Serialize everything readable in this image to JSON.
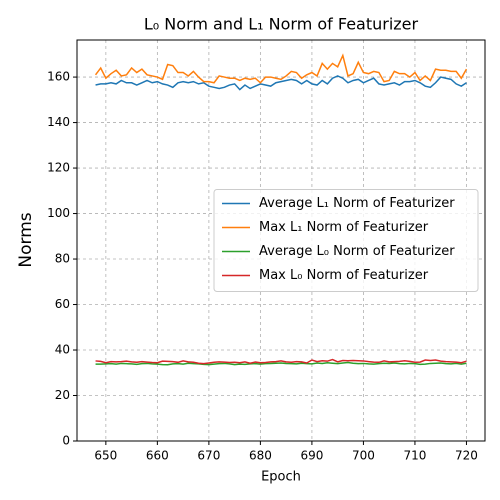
{
  "chart_data": {
    "type": "line",
    "title": "L₀ Norm and L₁ Norm of Featurizer",
    "xlabel": "Epoch",
    "ylabel": "Norms",
    "x": [
      648,
      649,
      650,
      651,
      652,
      653,
      654,
      655,
      656,
      657,
      658,
      659,
      660,
      661,
      662,
      663,
      664,
      665,
      666,
      667,
      668,
      669,
      670,
      671,
      672,
      673,
      674,
      675,
      676,
      677,
      678,
      679,
      680,
      681,
      682,
      683,
      684,
      685,
      686,
      687,
      688,
      689,
      690,
      691,
      692,
      693,
      694,
      695,
      696,
      697,
      698,
      699,
      700,
      701,
      702,
      703,
      704,
      705,
      706,
      707,
      708,
      709,
      710,
      711,
      712,
      713,
      714,
      715,
      716,
      717,
      718,
      719,
      720
    ],
    "series": [
      {
        "name": "Average L₁ Norm of Featurizer",
        "color": "#1f77b4",
        "values": [
          156.5,
          157,
          157,
          157.5,
          157,
          158.5,
          157.5,
          157.5,
          156.5,
          157.5,
          158.5,
          157.5,
          158,
          157,
          156.5,
          155.5,
          157.5,
          158,
          157.5,
          158,
          157,
          157.5,
          156,
          155.5,
          155,
          155.5,
          156.5,
          157,
          154.5,
          156.5,
          155,
          156,
          157,
          156.5,
          156,
          157.5,
          158,
          158.5,
          159,
          158.5,
          157,
          158.5,
          157,
          156.5,
          158.5,
          157,
          159.5,
          160.5,
          159.5,
          157.5,
          158.5,
          159,
          157.5,
          158.5,
          159.5,
          157,
          156.5,
          157,
          157.5,
          156.5,
          158,
          158,
          158.5,
          157.5,
          156,
          155.5,
          157.5,
          160,
          159.5,
          159,
          157,
          156,
          157.5
        ]
      },
      {
        "name": "Max L₁ Norm of Featurizer",
        "color": "#ff7f0e",
        "values": [
          161,
          164,
          159.5,
          161.5,
          163,
          160.5,
          161,
          164,
          162,
          163.5,
          161,
          160.5,
          160,
          159,
          165.5,
          165,
          162,
          162,
          160.5,
          162.5,
          160,
          158,
          158,
          157.5,
          160.5,
          160,
          159.5,
          159.5,
          158.5,
          159.5,
          159,
          159.5,
          157.5,
          160,
          160,
          159.5,
          159,
          160.5,
          162.5,
          162,
          159.5,
          161,
          162,
          160.5,
          166,
          163.5,
          166,
          164.5,
          169.5,
          160.5,
          161.5,
          166.5,
          162,
          161.5,
          162.5,
          162,
          158,
          158.5,
          162.5,
          161.5,
          161.5,
          160,
          162,
          158.5,
          160.5,
          158.5,
          163.5,
          163,
          163,
          162.5,
          162.5,
          159.5,
          163.5
        ]
      },
      {
        "name": "Average L₀ Norm of Featurizer",
        "color": "#2ca02c",
        "values": [
          33.8,
          33.8,
          33.9,
          34,
          33.8,
          34.1,
          34,
          33.9,
          33.7,
          34,
          34.1,
          33.9,
          33.8,
          33.6,
          33.5,
          33.9,
          34,
          33.8,
          34.2,
          34,
          33.9,
          33.7,
          33.6,
          33.8,
          34,
          34.1,
          33.9,
          33.6,
          33.8,
          33.7,
          33.9,
          34,
          33.8,
          34,
          34.1,
          34.2,
          34.3,
          34.1,
          34,
          33.9,
          34.2,
          34,
          33.9,
          34.3,
          34.1,
          34.4,
          34.2,
          34,
          34.3,
          34.5,
          34.2,
          34,
          34.1,
          33.9,
          33.8,
          34,
          34.2,
          34.1,
          34.3,
          34,
          33.9,
          34.1,
          34,
          33.7,
          33.8,
          34.1,
          34.2,
          34.3,
          34,
          33.9,
          34.1,
          33.8,
          34.2
        ]
      },
      {
        "name": "Max L₀ Norm of Featurizer",
        "color": "#d62728",
        "values": [
          35.2,
          35,
          34.4,
          34.9,
          34.8,
          34.9,
          35.1,
          34.8,
          34.6,
          34.9,
          34.7,
          34.5,
          34.4,
          35.1,
          35,
          34.9,
          34.6,
          35.2,
          34.8,
          34.6,
          34.2,
          34,
          34.3,
          34.6,
          34.8,
          34.7,
          34.5,
          34.6,
          34.4,
          34.8,
          34.2,
          34.7,
          34.4,
          34.5,
          34.8,
          34.9,
          35.2,
          34.8,
          34.6,
          34.9,
          34.8,
          34.3,
          35.6,
          34.9,
          35.3,
          35.1,
          35.8,
          34.8,
          35.4,
          35.3,
          35.4,
          35.3,
          35.2,
          34.9,
          34.7,
          34.6,
          35.2,
          34.8,
          34.9,
          35,
          35.3,
          35,
          34.6,
          34.7,
          35.6,
          35.4,
          35.6,
          35.1,
          34.9,
          34.8,
          34.7,
          34.4,
          35.1
        ]
      }
    ],
    "xlim": [
      644.4,
      723.6
    ],
    "ylim": [
      0,
      176.3
    ],
    "xticks": [
      650,
      660,
      670,
      680,
      690,
      700,
      710,
      720
    ],
    "yticks": [
      0,
      20,
      40,
      60,
      80,
      100,
      120,
      140,
      160
    ],
    "grid": true,
    "legend": "center right"
  }
}
